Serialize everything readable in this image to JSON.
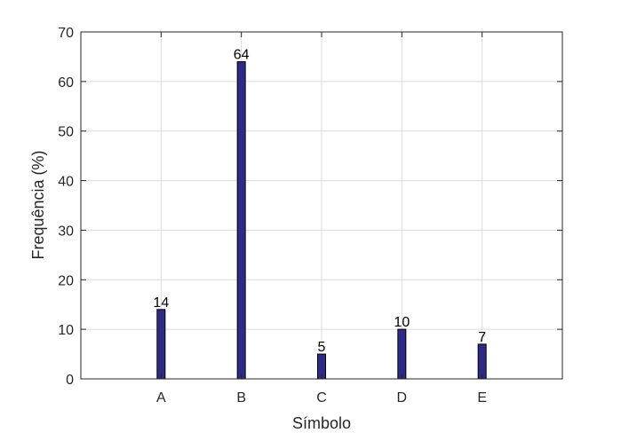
{
  "chart_data": {
    "type": "bar",
    "title": "",
    "xlabel": "Símbolo",
    "ylabel": "Frequência (%)",
    "categories": [
      "A",
      "B",
      "C",
      "D",
      "E"
    ],
    "values": [
      14,
      64,
      5,
      10,
      7
    ],
    "data_labels": [
      "14",
      "64",
      "5",
      "10",
      "7"
    ],
    "ylim": [
      0,
      70
    ],
    "yticks": [
      0,
      10,
      20,
      30,
      40,
      50,
      60,
      70
    ],
    "xlim": [
      0,
      6
    ],
    "grid": true,
    "bar_color": "#2e2a86"
  }
}
